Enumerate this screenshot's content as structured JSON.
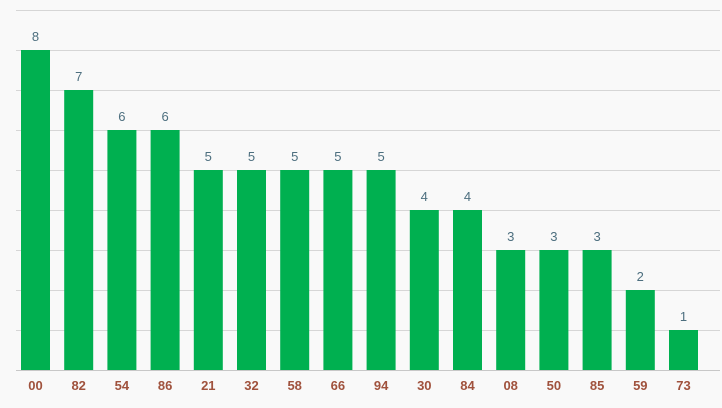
{
  "colors": {
    "background": "#f9f9f9",
    "bar": "#00b050",
    "gridline": "#d6d6d6",
    "axis_line": "#c8c8c8",
    "value_label": "#4d6f7f",
    "tick_label": "#a0523d"
  },
  "chart_data": {
    "type": "bar",
    "categories": [
      "00",
      "82",
      "54",
      "86",
      "21",
      "32",
      "58",
      "66",
      "94",
      "30",
      "84",
      "08",
      "50",
      "85",
      "59",
      "73"
    ],
    "values": [
      8,
      7,
      6,
      6,
      5,
      5,
      5,
      5,
      5,
      4,
      4,
      3,
      3,
      3,
      2,
      1
    ],
    "title": "",
    "xlabel": "",
    "ylabel": "",
    "ylim": [
      0,
      9
    ],
    "grid": true,
    "legend": "none",
    "data_labels": true
  }
}
